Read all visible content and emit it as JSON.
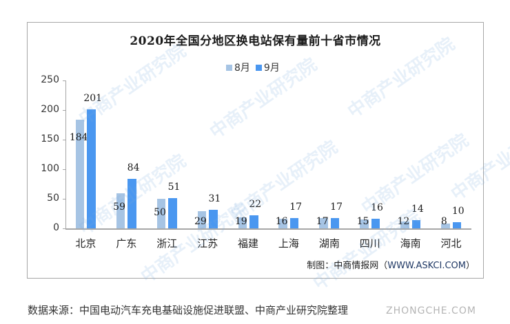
{
  "chart_data": {
    "type": "bar",
    "title": "2020年全国分地区换电站保有量前十省市情况",
    "categories": [
      "北京",
      "广东",
      "浙江",
      "江苏",
      "福建",
      "上海",
      "湖南",
      "四川",
      "海南",
      "河北"
    ],
    "series": [
      {
        "name": "8月",
        "color": "#a6c4e4",
        "values": [
          184,
          59,
          50,
          29,
          19,
          16,
          17,
          15,
          12,
          8
        ]
      },
      {
        "name": "9月",
        "color": "#4a97f0",
        "values": [
          201,
          84,
          51,
          31,
          22,
          17,
          17,
          16,
          14,
          10
        ]
      }
    ],
    "xlabel": "",
    "ylabel": "",
    "ylim": [
      0,
      250
    ],
    "yticks": [
      0,
      50,
      100,
      150,
      200,
      250
    ],
    "grid": false,
    "legend_position": "top"
  },
  "labels": {
    "yticks": [
      "0",
      "50",
      "100",
      "150",
      "200",
      "250"
    ],
    "credit_prefix": "制图：中商情报网（",
    "credit_url": "WWW.ASKCI.COM",
    "credit_suffix": "）",
    "source": "数据来源：中国电动汽车充电基础设施促进联盟、中商产业研究院整理",
    "watermark": "中商产业研究院",
    "site_watermark": "ZHONGCHE.COM"
  }
}
